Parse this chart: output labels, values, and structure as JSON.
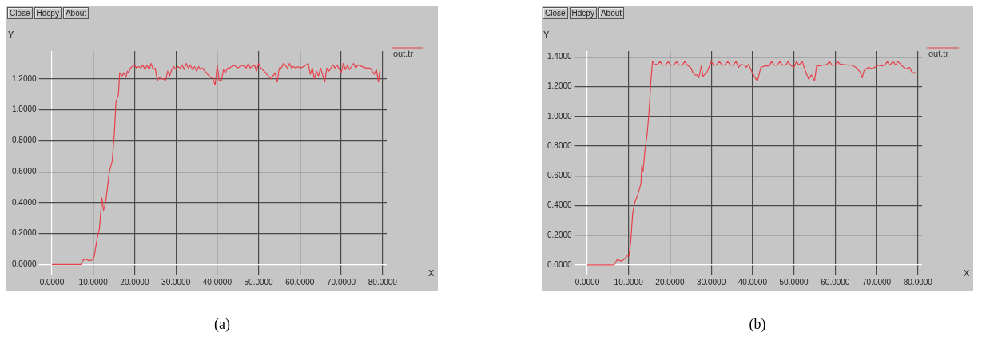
{
  "chart_data": [
    {
      "type": "line",
      "title": "(a)",
      "xlabel": "X",
      "ylabel": "Y",
      "annotations": [
        "Close",
        "Hdcpy",
        "About"
      ],
      "legend": "top right",
      "grid": true,
      "marker": "none",
      "line_style": "solid",
      "xlim": [
        -2,
        81
      ],
      "xticks": [
        {
          "value": 0,
          "label": "0.0000"
        },
        {
          "value": 10,
          "label": "10.0000"
        },
        {
          "value": 20,
          "label": "20.0000"
        },
        {
          "value": 30,
          "label": "30.0000"
        },
        {
          "value": 40,
          "label": "40.0000"
        },
        {
          "value": 50,
          "label": "50.0000"
        },
        {
          "value": 60,
          "label": "60.0000"
        },
        {
          "value": 70,
          "label": "70.0000"
        },
        {
          "value": 80,
          "label": "80.0000"
        }
      ],
      "ylim": [
        -0.07,
        1.38
      ],
      "yticks": [
        {
          "value": 0,
          "label": "0.0000"
        },
        {
          "value": 0.2,
          "label": "0.2000"
        },
        {
          "value": 0.4,
          "label": "0.4000"
        },
        {
          "value": 0.6,
          "label": "0.6000"
        },
        {
          "value": 0.8,
          "label": "0.8000"
        },
        {
          "value": 1,
          "label": "1.0000"
        },
        {
          "value": 1.2,
          "label": "1.2000"
        }
      ],
      "series": [
        {
          "name": "out.tr",
          "color": "#e8404a",
          "x": [
            0,
            7,
            7.6,
            8.3,
            8.9,
            9.9,
            10.3,
            10.9,
            11.5,
            12.1,
            12.5,
            13,
            13.9,
            14.6,
            15.1,
            15.5,
            16.1,
            16.4,
            17,
            17.4,
            17.9,
            18.3,
            18.6,
            19,
            20,
            20.5,
            21,
            21.5,
            22,
            22.5,
            23,
            23.5,
            24,
            24.5,
            25,
            25.5,
            26,
            26.5,
            27,
            27.5,
            28,
            28.5,
            29,
            29.5,
            30,
            30.5,
            31,
            31.5,
            32,
            32.5,
            33,
            33.5,
            34,
            34.5,
            35,
            35.5,
            36,
            36.5,
            37,
            38,
            39,
            39.5,
            40,
            40.5,
            41,
            41.5,
            42,
            42.5,
            43,
            44,
            45,
            45.5,
            46,
            47,
            47.5,
            48,
            49,
            49.5,
            50,
            50.5,
            51,
            52,
            53,
            54,
            54.5,
            55,
            55.5,
            56,
            57,
            57.5,
            58,
            58.5,
            59,
            59.5,
            60,
            61,
            62,
            62.5,
            63,
            63.5,
            64,
            64.5,
            65,
            66,
            66.5,
            67,
            68,
            68.5,
            69,
            70,
            70.5,
            71,
            71.5,
            72,
            73,
            73.5,
            74,
            75,
            76,
            77,
            78,
            78.5,
            79,
            79.3
          ],
          "values": [
            0,
            0,
            0.03,
            0.035,
            0.025,
            0.03,
            0.06,
            0.16,
            0.23,
            0.43,
            0.35,
            0.4,
            0.6,
            0.67,
            0.84,
            1.05,
            1.1,
            1.24,
            1.22,
            1.24,
            1.21,
            1.25,
            1.24,
            1.27,
            1.29,
            1.27,
            1.28,
            1.27,
            1.29,
            1.26,
            1.29,
            1.26,
            1.3,
            1.26,
            1.27,
            1.19,
            1.21,
            1.2,
            1.2,
            1.19,
            1.25,
            1.22,
            1.26,
            1.28,
            1.26,
            1.28,
            1.27,
            1.29,
            1.26,
            1.3,
            1.27,
            1.29,
            1.26,
            1.28,
            1.25,
            1.28,
            1.26,
            1.27,
            1.25,
            1.22,
            1.2,
            1.16,
            1.29,
            1.19,
            1.19,
            1.26,
            1.24,
            1.27,
            1.27,
            1.29,
            1.27,
            1.28,
            1.29,
            1.27,
            1.3,
            1.27,
            1.29,
            1.25,
            1.3,
            1.27,
            1.26,
            1.23,
            1.2,
            1.24,
            1.18,
            1.27,
            1.27,
            1.3,
            1.27,
            1.3,
            1.27,
            1.28,
            1.27,
            1.28,
            1.27,
            1.28,
            1.3,
            1.23,
            1.27,
            1.2,
            1.25,
            1.22,
            1.27,
            1.18,
            1.27,
            1.25,
            1.29,
            1.27,
            1.29,
            1.24,
            1.3,
            1.26,
            1.29,
            1.26,
            1.3,
            1.27,
            1.29,
            1.28,
            1.27,
            1.27,
            1.23,
            1.26,
            1.18,
            1.25
          ]
        }
      ]
    },
    {
      "type": "line",
      "title": "(b)",
      "xlabel": "X",
      "ylabel": "Y",
      "annotations": [
        "Close",
        "Hdcpy",
        "About"
      ],
      "legend": "top right",
      "grid": true,
      "marker": "none",
      "line_style": "solid",
      "xlim": [
        -2,
        81
      ],
      "xticks": [
        {
          "value": 0,
          "label": "0.0000"
        },
        {
          "value": 10,
          "label": "10.0000"
        },
        {
          "value": 20,
          "label": "20.0000"
        },
        {
          "value": 30,
          "label": "30.0000"
        },
        {
          "value": 40,
          "label": "40.0000"
        },
        {
          "value": 50,
          "label": "50.0000"
        },
        {
          "value": 60,
          "label": "60.0000"
        },
        {
          "value": 70,
          "label": "70.0000"
        },
        {
          "value": 80,
          "label": "80.0000"
        }
      ],
      "ylim": [
        -0.07,
        1.44
      ],
      "yticks": [
        {
          "value": 0,
          "label": "0.0000"
        },
        {
          "value": 0.2,
          "label": "0.2000"
        },
        {
          "value": 0.4,
          "label": "0.4000"
        },
        {
          "value": 0.6,
          "label": "0.6000"
        },
        {
          "value": 0.8,
          "label": "0.8000"
        },
        {
          "value": 1,
          "label": "1.0000"
        },
        {
          "value": 1.2,
          "label": "1.2000"
        },
        {
          "value": 1.4,
          "label": "1.4000"
        }
      ],
      "series": [
        {
          "name": "out.tr",
          "color": "#e8404a",
          "x": [
            0,
            6.5,
            7.2,
            7.8,
            8.3,
            9,
            9.6,
            10.1,
            10.5,
            11,
            11.5,
            12.3,
            13,
            13.2,
            13.5,
            14,
            14.5,
            15,
            15.4,
            15.8,
            16.3,
            17,
            17.6,
            18.2,
            19,
            19.6,
            20.2,
            21,
            21.6,
            22.2,
            23,
            23.6,
            24.2,
            25,
            25.5,
            26,
            26.5,
            27,
            27.6,
            28,
            29,
            30,
            30.6,
            31.2,
            32,
            32.6,
            33.2,
            34,
            34.6,
            35.2,
            36,
            36.6,
            37.2,
            38,
            38.5,
            39,
            40,
            40.6,
            41.2,
            42,
            43,
            44,
            44.6,
            45.2,
            46,
            46.6,
            47.2,
            48,
            48.6,
            49.2,
            50,
            50.6,
            51.2,
            52,
            53,
            53.6,
            54.2,
            55,
            55.5,
            56,
            57,
            58,
            58.6,
            59.2,
            60,
            60.6,
            61.2,
            62,
            63,
            64,
            65,
            66,
            66.5,
            67,
            68,
            69,
            70,
            70.6,
            71.2,
            72,
            72.6,
            73.2,
            74,
            74.6,
            75.2,
            76,
            77,
            78,
            78.5,
            79,
            79.3
          ],
          "values": [
            0,
            0,
            0.035,
            0.03,
            0.025,
            0.04,
            0.06,
            0.06,
            0.15,
            0.35,
            0.42,
            0.48,
            0.55,
            0.67,
            0.63,
            0.78,
            0.88,
            1.05,
            1.24,
            1.37,
            1.35,
            1.35,
            1.37,
            1.345,
            1.345,
            1.37,
            1.345,
            1.345,
            1.37,
            1.345,
            1.345,
            1.37,
            1.345,
            1.33,
            1.3,
            1.28,
            1.28,
            1.26,
            1.34,
            1.27,
            1.3,
            1.37,
            1.345,
            1.345,
            1.37,
            1.345,
            1.345,
            1.37,
            1.345,
            1.345,
            1.37,
            1.33,
            1.35,
            1.345,
            1.33,
            1.35,
            1.29,
            1.26,
            1.24,
            1.33,
            1.34,
            1.34,
            1.37,
            1.345,
            1.345,
            1.37,
            1.345,
            1.345,
            1.37,
            1.345,
            1.33,
            1.37,
            1.345,
            1.37,
            1.29,
            1.25,
            1.28,
            1.24,
            1.34,
            1.34,
            1.345,
            1.35,
            1.37,
            1.345,
            1.345,
            1.37,
            1.35,
            1.35,
            1.345,
            1.345,
            1.33,
            1.3,
            1.26,
            1.31,
            1.33,
            1.32,
            1.34,
            1.345,
            1.34,
            1.345,
            1.37,
            1.345,
            1.37,
            1.345,
            1.37,
            1.345,
            1.32,
            1.33,
            1.3,
            1.29,
            1.3
          ]
        }
      ]
    }
  ]
}
